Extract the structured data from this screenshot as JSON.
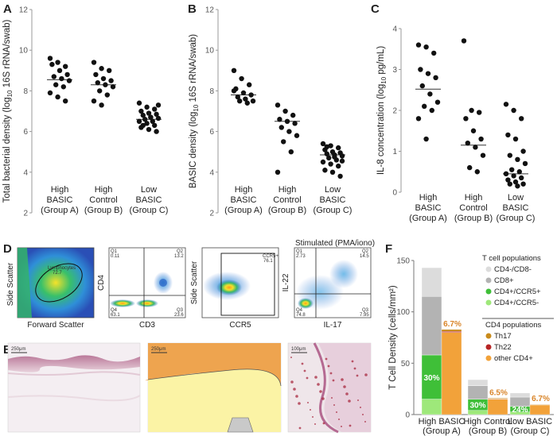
{
  "chart_data": [
    {
      "panel": "A",
      "type": "scatter",
      "ylabel": "Total bacterial density (log10 16S rRNA/swab)",
      "ylim": [
        2,
        12
      ],
      "yticks": [
        2,
        4,
        6,
        8,
        10,
        12
      ],
      "categories": [
        [
          "High",
          "BASIC",
          "(Group A)"
        ],
        [
          "High",
          "Control",
          "(Group B)"
        ],
        [
          "Low",
          "BASIC",
          "(Group C)"
        ]
      ],
      "groups": [
        {
          "median": 8.55,
          "values": [
            9.6,
            9.4,
            9.2,
            9.3,
            9.0,
            8.8,
            8.7,
            8.6,
            8.5,
            8.3,
            8.2,
            7.9,
            7.7,
            7.5
          ]
        },
        {
          "median": 8.3,
          "values": [
            9.4,
            9.1,
            9.0,
            8.8,
            8.6,
            8.5,
            8.4,
            8.3,
            8.2,
            8.0,
            7.8,
            7.5,
            7.3
          ]
        },
        {
          "median": 6.6,
          "values": [
            7.4,
            7.2,
            7.1,
            7.0,
            6.9,
            6.85,
            6.8,
            6.7,
            6.65,
            6.6,
            6.5,
            6.5,
            6.4,
            6.3,
            6.2,
            6.1,
            6.0,
            6.3,
            6.7,
            7.3
          ]
        }
      ]
    },
    {
      "panel": "B",
      "type": "scatter",
      "ylabel": "BASIC density (log10 16S rRNA/swab)",
      "ylim": [
        2,
        12
      ],
      "yticks": [
        2,
        4,
        6,
        8,
        10,
        12
      ],
      "categories": [
        [
          "High",
          "BASIC",
          "(Group A)"
        ],
        [
          "High",
          "Control",
          "(Group B)"
        ],
        [
          "Low",
          "BASIC",
          "(Group C)"
        ]
      ],
      "groups": [
        {
          "median": 7.8,
          "values": [
            9.0,
            8.6,
            8.3,
            8.1,
            7.9,
            7.8,
            7.7,
            7.6,
            7.5,
            7.5,
            7.4,
            8.0
          ]
        },
        {
          "median": 6.5,
          "values": [
            7.3,
            7.0,
            6.8,
            6.6,
            6.5,
            6.4,
            6.2,
            6.0,
            5.8,
            5.5,
            5.0,
            4.0
          ]
        },
        {
          "median": 4.85,
          "values": [
            5.4,
            5.3,
            5.2,
            5.1,
            5.0,
            4.95,
            4.9,
            4.85,
            4.8,
            4.7,
            4.6,
            4.5,
            4.4,
            4.3,
            4.1,
            4.0,
            3.8,
            5.25,
            4.75,
            4.55
          ]
        }
      ]
    },
    {
      "panel": "C",
      "type": "scatter",
      "ylabel": "IL-8 concentration (log10 pg/mL)",
      "ylim": [
        0,
        4
      ],
      "yticks": [
        0,
        1,
        2,
        3,
        4
      ],
      "categories": [
        [
          "High",
          "BASIC",
          "(Group A)"
        ],
        [
          "High",
          "Control",
          "(Group B)"
        ],
        [
          "Low",
          "BASIC",
          "(Group C)"
        ]
      ],
      "groups": [
        {
          "median": 2.52,
          "values": [
            3.6,
            3.55,
            3.4,
            3.0,
            2.9,
            2.8,
            2.6,
            2.4,
            2.2,
            2.1,
            2.0,
            1.8,
            1.3
          ]
        },
        {
          "median": 1.15,
          "values": [
            3.7,
            2.0,
            1.95,
            1.8,
            1.5,
            1.3,
            1.2,
            1.1,
            0.9,
            0.6,
            0.5
          ]
        },
        {
          "median": 0.45,
          "values": [
            2.15,
            2.0,
            1.8,
            1.4,
            1.3,
            1.0,
            0.9,
            0.8,
            0.7,
            0.55,
            0.5,
            0.45,
            0.4,
            0.35,
            0.3,
            0.25,
            0.2,
            0.2,
            0.15
          ]
        }
      ]
    },
    {
      "panel": "F",
      "type": "bar",
      "ylabel": "T Cell Density (cells/mm²)",
      "ylim": [
        0,
        150
      ],
      "yticks": [
        0,
        50,
        100,
        150
      ],
      "categories": [
        [
          "High BASIC",
          "(Group A)"
        ],
        [
          "High Control",
          "(Group B)"
        ],
        [
          "Low BASIC",
          "(Group C)"
        ]
      ],
      "legend_header_1": "T cell populations",
      "legend_header_2": "CD4 populations",
      "tcell_series": [
        {
          "name": "CD4+/CCR5-",
          "color": "#9ee87a",
          "values": [
            15,
            4,
            2.5
          ]
        },
        {
          "name": "CD4+/CCR5+",
          "color": "#3fbf38",
          "values": [
            43,
            11,
            5.5
          ]
        },
        {
          "name": "CD8+",
          "color": "#b3b3b3",
          "values": [
            57,
            13,
            9
          ]
        },
        {
          "name": "CD4-/CD8-",
          "color": "#dcdcdc",
          "values": [
            28,
            6,
            4
          ]
        }
      ],
      "cd4_series": [
        {
          "name": "other CD4+",
          "color": "#f2a23a",
          "values": [
            80,
            15,
            9.3
          ]
        },
        {
          "name": "Th22",
          "color": "#b72525",
          "values": [
            1,
            0.4,
            0.3
          ]
        },
        {
          "name": "Th17",
          "color": "#c98b1c",
          "values": [
            1.8,
            0.6,
            0.4
          ]
        }
      ],
      "ccr5_pct_labels": [
        "30%",
        "30%",
        "24%"
      ],
      "th17_pct_labels": [
        "6.7%",
        "6.5%",
        "6.7%"
      ]
    }
  ],
  "panel_d": {
    "letter": "D",
    "p1": {
      "ylabel": "Side Scatter",
      "xlabel": "Forward Scatter",
      "gate_label": "Lymphocytes",
      "gate_value": "72.7"
    },
    "p2": {
      "ylabel": "CD4",
      "xlabel": "CD3",
      "q1": "Q1",
      "q1v": "0.11",
      "q2": "Q2",
      "q2v": "13.2",
      "q3": "Q3",
      "q3v": "23.6",
      "q4": "Q4",
      "q4v": "63.1"
    },
    "p3": {
      "ylabel": "Side Scatter",
      "xlabel": "CCR5",
      "gate_label": "CCR5+",
      "gate_value": "76.1"
    },
    "p4": {
      "title": "Stimulated (PMA/iono)",
      "ylabel": "IL-22",
      "xlabel": "IL-17",
      "q1": "Q1",
      "q1v": "2.73",
      "q2": "Q2",
      "q2v": "14.5",
      "q3": "Q3",
      "q3v": "7.95",
      "q4": "Q4",
      "q4v": "74.8"
    }
  },
  "panel_e": {
    "letter": "E",
    "scale1": "250μm",
    "scale2": "250μm",
    "scale3": "100μm"
  },
  "panel_letters": {
    "a": "A",
    "b": "B",
    "c": "C",
    "f": "F"
  }
}
